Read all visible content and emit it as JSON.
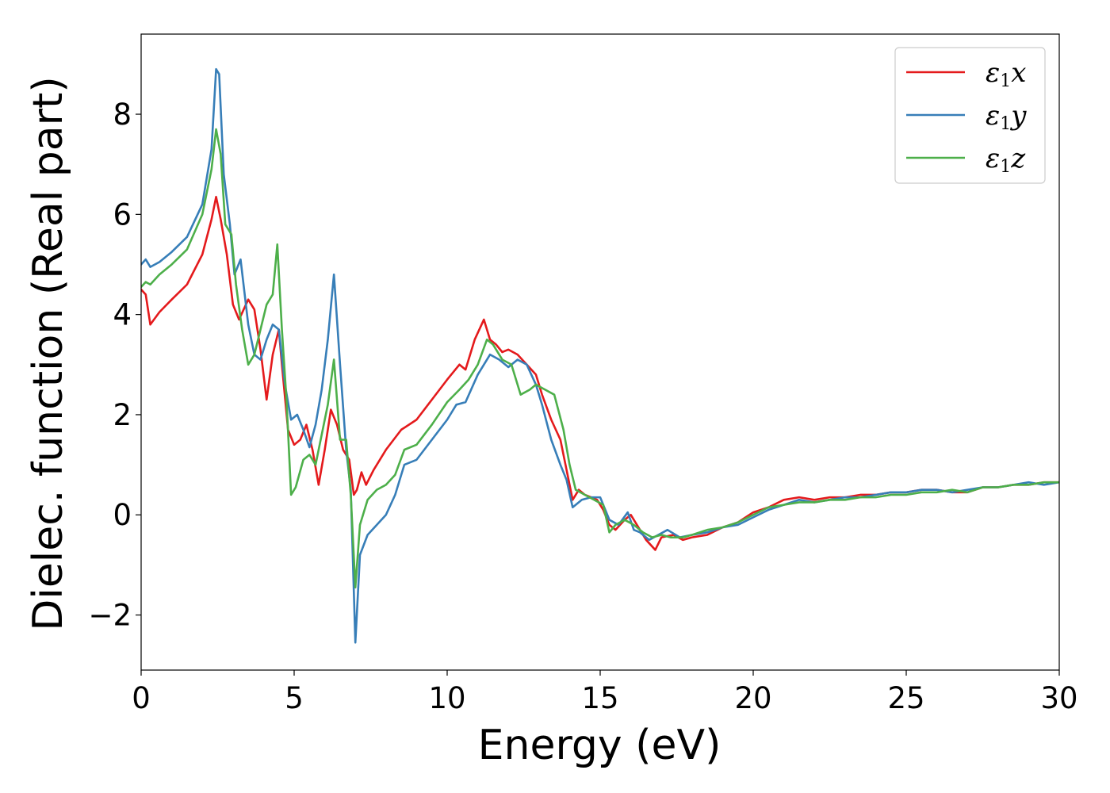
{
  "chart_data": {
    "type": "line",
    "title": "",
    "xlabel": "Energy (eV)",
    "ylabel": "Dielec. function (Real part)",
    "xlim": [
      0,
      30
    ],
    "ylim": [
      -3.1,
      9.6
    ],
    "xticks": [
      0,
      5,
      10,
      15,
      20,
      25,
      30
    ],
    "xtick_labels": [
      "0",
      "5",
      "10",
      "15",
      "20",
      "25",
      "30"
    ],
    "yticks": [
      -2,
      0,
      2,
      4,
      6,
      8
    ],
    "ytick_labels": [
      "−2",
      "0",
      "2",
      "4",
      "6",
      "8"
    ],
    "grid": false,
    "legend_position": "top-right",
    "series": [
      {
        "name": "ε1x",
        "legend_symbol": "ε",
        "legend_subscript": "1",
        "legend_suffix": "x",
        "color": "#e41a1c",
        "x": [
          0.0,
          0.15,
          0.3,
          0.6,
          1.0,
          1.5,
          2.0,
          2.3,
          2.45,
          2.6,
          2.8,
          3.0,
          3.2,
          3.5,
          3.7,
          3.9,
          4.1,
          4.3,
          4.5,
          4.6,
          4.8,
          5.0,
          5.2,
          5.4,
          5.6,
          5.8,
          6.0,
          6.2,
          6.4,
          6.6,
          6.8,
          6.95,
          7.05,
          7.2,
          7.35,
          7.6,
          8.0,
          8.5,
          9.0,
          9.5,
          10.0,
          10.4,
          10.6,
          10.9,
          11.2,
          11.4,
          11.6,
          11.8,
          12.0,
          12.3,
          12.6,
          12.9,
          13.1,
          13.4,
          13.7,
          13.9,
          14.1,
          14.3,
          14.5,
          14.7,
          14.9,
          15.1,
          15.3,
          15.5,
          15.8,
          16.0,
          16.3,
          16.5,
          16.8,
          17.0,
          17.4,
          17.7,
          18.0,
          18.5,
          19.0,
          19.5,
          20.0,
          20.5,
          21.0,
          21.5,
          22.0,
          22.5,
          23.0,
          23.5,
          24.0,
          24.5,
          25.0,
          25.5,
          26.0,
          26.5,
          27.0,
          27.5,
          28.0,
          28.5,
          29.0,
          29.5,
          30.0
        ],
        "y": [
          4.5,
          4.4,
          3.8,
          4.05,
          4.3,
          4.6,
          5.2,
          5.9,
          6.35,
          5.9,
          5.2,
          4.2,
          3.9,
          4.3,
          4.1,
          3.3,
          2.3,
          3.2,
          3.7,
          3.0,
          1.7,
          1.4,
          1.5,
          1.8,
          1.3,
          0.6,
          1.3,
          2.1,
          1.8,
          1.3,
          1.1,
          0.4,
          0.5,
          0.85,
          0.6,
          0.9,
          1.3,
          1.7,
          1.9,
          2.3,
          2.7,
          3.0,
          2.9,
          3.5,
          3.9,
          3.5,
          3.4,
          3.25,
          3.3,
          3.2,
          3.0,
          2.8,
          2.4,
          1.9,
          1.5,
          0.9,
          0.3,
          0.5,
          0.4,
          0.35,
          0.3,
          0.1,
          -0.2,
          -0.3,
          -0.1,
          0.0,
          -0.3,
          -0.5,
          -0.7,
          -0.45,
          -0.4,
          -0.5,
          -0.45,
          -0.4,
          -0.25,
          -0.15,
          0.05,
          0.15,
          0.3,
          0.35,
          0.3,
          0.35,
          0.35,
          0.4,
          0.4,
          0.45,
          0.45,
          0.5,
          0.5,
          0.45,
          0.45,
          0.55,
          0.55,
          0.6,
          0.6,
          0.65,
          0.65
        ]
      },
      {
        "name": "ε1y",
        "legend_symbol": "ε",
        "legend_subscript": "1",
        "legend_suffix": "y",
        "color": "#377eb8",
        "x": [
          0.0,
          0.15,
          0.3,
          0.6,
          1.0,
          1.5,
          2.0,
          2.3,
          2.45,
          2.55,
          2.7,
          2.9,
          3.05,
          3.25,
          3.5,
          3.7,
          3.9,
          4.1,
          4.3,
          4.5,
          4.7,
          4.9,
          5.1,
          5.3,
          5.5,
          5.7,
          5.9,
          6.1,
          6.3,
          6.5,
          6.7,
          6.85,
          7.0,
          7.15,
          7.4,
          7.7,
          8.0,
          8.3,
          8.6,
          9.0,
          9.5,
          10.0,
          10.3,
          10.6,
          11.0,
          11.4,
          11.7,
          12.0,
          12.3,
          12.6,
          12.9,
          13.1,
          13.4,
          13.7,
          13.9,
          14.1,
          14.4,
          14.7,
          15.0,
          15.3,
          15.6,
          15.9,
          16.1,
          16.3,
          16.6,
          16.9,
          17.2,
          17.6,
          18.0,
          18.5,
          19.0,
          19.5,
          20.0,
          20.5,
          21.0,
          21.5,
          22.0,
          22.5,
          23.0,
          23.5,
          24.0,
          24.5,
          25.0,
          25.5,
          26.0,
          26.5,
          27.0,
          27.5,
          28.0,
          28.5,
          29.0,
          29.5,
          30.0
        ],
        "y": [
          5.0,
          5.1,
          4.95,
          5.05,
          5.25,
          5.55,
          6.2,
          7.3,
          8.9,
          8.8,
          6.8,
          5.8,
          4.8,
          5.1,
          3.8,
          3.2,
          3.1,
          3.5,
          3.8,
          3.7,
          2.6,
          1.9,
          2.0,
          1.7,
          1.35,
          1.8,
          2.5,
          3.5,
          4.8,
          3.0,
          1.3,
          0.5,
          -2.55,
          -0.8,
          -0.4,
          -0.2,
          0.0,
          0.4,
          1.0,
          1.1,
          1.5,
          1.9,
          2.2,
          2.25,
          2.8,
          3.2,
          3.1,
          2.95,
          3.1,
          3.0,
          2.6,
          2.2,
          1.5,
          1.0,
          0.7,
          0.15,
          0.3,
          0.35,
          0.35,
          -0.1,
          -0.2,
          0.05,
          -0.3,
          -0.35,
          -0.5,
          -0.4,
          -0.3,
          -0.45,
          -0.4,
          -0.35,
          -0.25,
          -0.2,
          -0.05,
          0.1,
          0.2,
          0.3,
          0.25,
          0.3,
          0.35,
          0.35,
          0.4,
          0.45,
          0.45,
          0.5,
          0.5,
          0.45,
          0.5,
          0.55,
          0.55,
          0.6,
          0.65,
          0.6,
          0.65
        ]
      },
      {
        "name": "ε1z",
        "legend_symbol": "ε",
        "legend_subscript": "1",
        "legend_suffix": "z",
        "color": "#4daf4a",
        "x": [
          0.0,
          0.15,
          0.3,
          0.6,
          1.0,
          1.5,
          2.0,
          2.3,
          2.45,
          2.6,
          2.75,
          2.95,
          3.1,
          3.3,
          3.5,
          3.7,
          3.9,
          4.1,
          4.3,
          4.45,
          4.6,
          4.75,
          4.9,
          5.05,
          5.3,
          5.5,
          5.7,
          5.9,
          6.1,
          6.3,
          6.5,
          6.7,
          6.85,
          7.0,
          7.15,
          7.4,
          7.7,
          8.0,
          8.3,
          8.6,
          9.0,
          9.5,
          10.0,
          10.4,
          10.7,
          11.0,
          11.3,
          11.5,
          11.8,
          12.1,
          12.4,
          12.7,
          12.9,
          13.2,
          13.5,
          13.8,
          14.0,
          14.2,
          14.5,
          14.8,
          15.1,
          15.3,
          15.5,
          15.8,
          16.1,
          16.4,
          16.7,
          17.0,
          17.3,
          17.7,
          18.0,
          18.5,
          19.0,
          19.5,
          20.0,
          20.5,
          21.0,
          21.5,
          22.0,
          22.5,
          23.0,
          23.5,
          24.0,
          24.5,
          25.0,
          25.5,
          26.0,
          26.5,
          27.0,
          27.5,
          28.0,
          28.5,
          29.0,
          29.5,
          30.0
        ],
        "y": [
          4.55,
          4.65,
          4.6,
          4.8,
          5.0,
          5.3,
          6.0,
          6.9,
          7.7,
          7.2,
          5.8,
          5.6,
          4.6,
          3.7,
          3.0,
          3.2,
          3.7,
          4.2,
          4.4,
          5.4,
          3.7,
          2.3,
          0.4,
          0.55,
          1.1,
          1.2,
          1.0,
          1.6,
          2.2,
          3.1,
          1.5,
          1.5,
          0.4,
          -1.45,
          -0.2,
          0.3,
          0.5,
          0.6,
          0.8,
          1.3,
          1.4,
          1.8,
          2.25,
          2.5,
          2.7,
          3.0,
          3.5,
          3.4,
          3.1,
          3.0,
          2.4,
          2.5,
          2.6,
          2.5,
          2.4,
          1.7,
          1.0,
          0.5,
          0.4,
          0.3,
          0.2,
          -0.35,
          -0.2,
          -0.1,
          -0.2,
          -0.35,
          -0.45,
          -0.4,
          -0.45,
          -0.45,
          -0.4,
          -0.3,
          -0.25,
          -0.15,
          0.0,
          0.15,
          0.2,
          0.25,
          0.25,
          0.3,
          0.3,
          0.35,
          0.35,
          0.4,
          0.4,
          0.45,
          0.45,
          0.5,
          0.45,
          0.55,
          0.55,
          0.6,
          0.6,
          0.65,
          0.65
        ]
      }
    ]
  }
}
